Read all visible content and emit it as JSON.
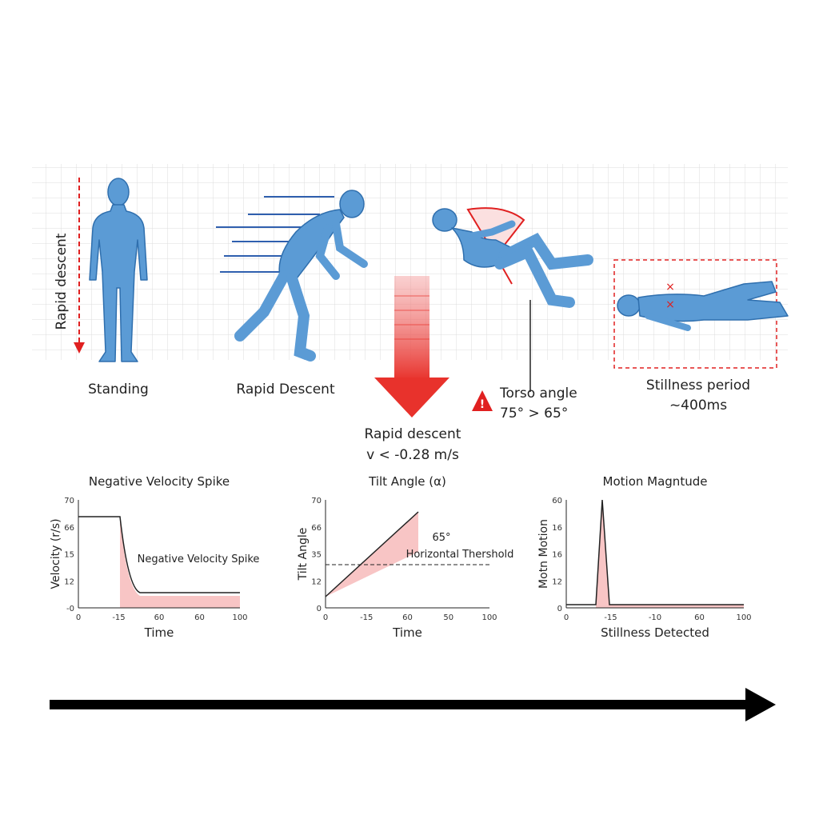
{
  "side_label": "Rapid descent",
  "stages": [
    "Standing",
    "Rapid Descent"
  ],
  "arrow_caption": [
    "Rapid descent",
    "v < -0.28 m/s"
  ],
  "torso_caption": [
    "Torso angle",
    "75° > 65°"
  ],
  "stillness_caption": [
    "Stillness period",
    "~400ms"
  ],
  "charts": [
    {
      "title": "Negative Velocity Spike",
      "y_label": "Velocity (r/s)",
      "x_label": "Time",
      "yticks": [
        "70",
        "66",
        "15",
        "12",
        "-0"
      ],
      "xticks": [
        "0",
        "-15",
        "60",
        "60",
        "100"
      ],
      "annotations": [
        "Negative Velocity Spike"
      ]
    },
    {
      "title": "Tilt Angle (α)",
      "y_label": "Tilt Angle",
      "x_label": "Time",
      "yticks": [
        "70",
        "66",
        "35",
        "12",
        "0"
      ],
      "xticks": [
        "0",
        "-15",
        "60",
        "50",
        "100"
      ],
      "annotations": [
        "65°",
        "Horizontal Thershold"
      ]
    },
    {
      "title": "Motion Magntude",
      "y_label": "Motn Motion",
      "x_label": "Stillness Detected",
      "yticks": [
        "60",
        "16",
        "16",
        "12",
        "0"
      ],
      "xticks": [
        "0",
        "-15",
        "-10",
        "60",
        "100"
      ],
      "annotations": []
    }
  ]
}
